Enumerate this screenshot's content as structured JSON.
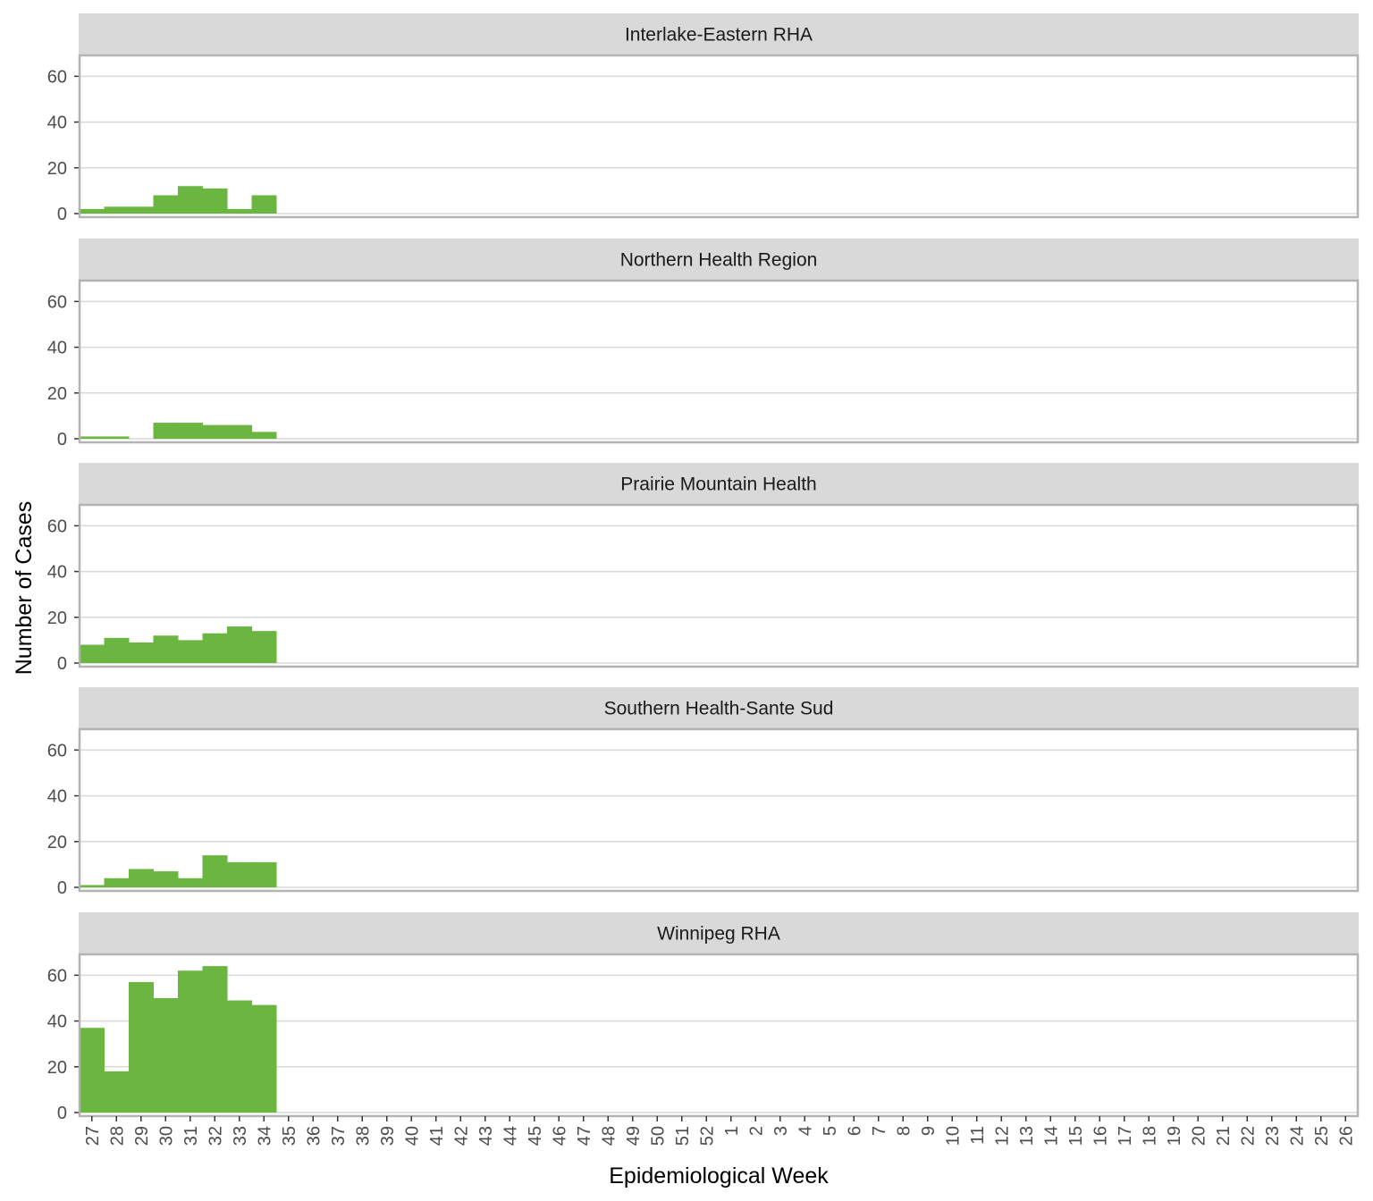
{
  "chart_data": {
    "type": "bar",
    "xlabel": "Epidemiological Week",
    "ylabel": "Number of Cases",
    "ylim": [
      0,
      66
    ],
    "yticks": [
      0,
      20,
      40,
      60
    ],
    "grid": true,
    "colors": {
      "bar": "#6ab641",
      "strip_bg": "#d9d9d9",
      "panel_border": "#b3b3b3",
      "grid": "#d9d9d9"
    },
    "categories": [
      "27",
      "28",
      "29",
      "30",
      "31",
      "32",
      "33",
      "34",
      "35",
      "36",
      "37",
      "38",
      "39",
      "40",
      "41",
      "42",
      "43",
      "44",
      "45",
      "46",
      "47",
      "48",
      "49",
      "50",
      "51",
      "52",
      "1",
      "2",
      "3",
      "4",
      "5",
      "6",
      "7",
      "8",
      "9",
      "10",
      "11",
      "12",
      "13",
      "14",
      "15",
      "16",
      "17",
      "18",
      "19",
      "20",
      "21",
      "22",
      "23",
      "24",
      "25",
      "26"
    ],
    "panels": [
      {
        "name": "Interlake-Eastern RHA",
        "values": [
          2,
          3,
          3,
          8,
          12,
          11,
          2,
          8
        ]
      },
      {
        "name": "Northern Health Region",
        "values": [
          1,
          1,
          0,
          7,
          7,
          6,
          6,
          3
        ]
      },
      {
        "name": "Prairie Mountain Health",
        "values": [
          8,
          11,
          9,
          12,
          10,
          13,
          16,
          14
        ]
      },
      {
        "name": "Southern Health-Sante Sud",
        "values": [
          1,
          4,
          8,
          7,
          4,
          14,
          11,
          11
        ]
      },
      {
        "name": "Winnipeg RHA",
        "values": [
          37,
          18,
          57,
          50,
          62,
          64,
          49,
          47
        ]
      }
    ]
  }
}
